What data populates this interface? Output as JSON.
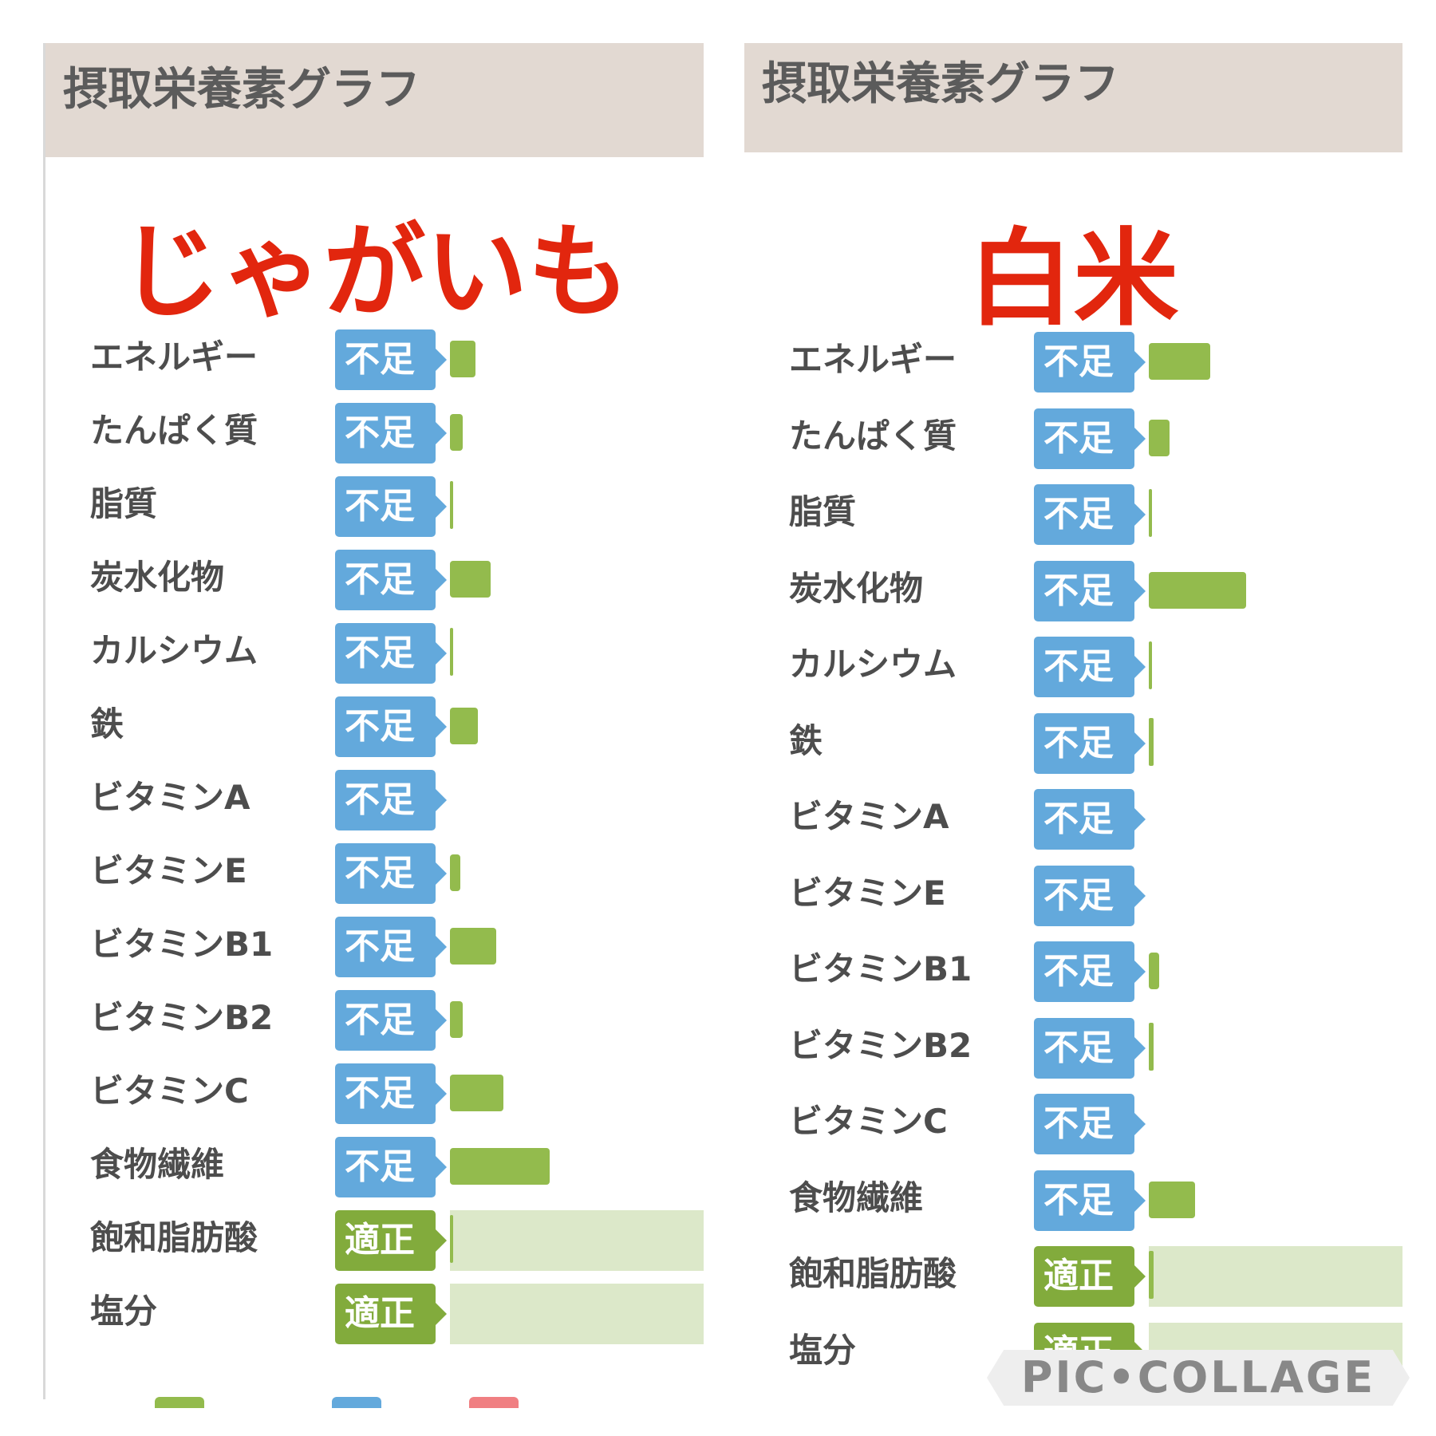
{
  "colors": {
    "header_bg": "#e2d9d2",
    "title_red": "#e2260e",
    "badge_lack": "#63a9dc",
    "badge_ok": "#82ab3c",
    "bar_green": "#93bb4d",
    "bar_track": "#dce8c9",
    "legend_green": "#93bb4d",
    "legend_blue": "#63a9dc",
    "legend_red": "#f07f82"
  },
  "chart_data": [
    {
      "type": "bar",
      "panel_title": "摂取栄養素グラフ",
      "title": "じゃがいも",
      "categories": [
        "エネルギー",
        "たんぱく質",
        "脂質",
        "炭水化物",
        "カルシウム",
        "鉄",
        "ビタミンA",
        "ビタミンE",
        "ビタミンB1",
        "ビタミンB2",
        "ビタミンC",
        "食物繊維",
        "飽和脂肪酸",
        "塩分"
      ],
      "status": [
        "不足",
        "不足",
        "不足",
        "不足",
        "不足",
        "不足",
        "不足",
        "不足",
        "不足",
        "不足",
        "不足",
        "不足",
        "適正",
        "適正"
      ],
      "values": [
        10,
        5,
        1,
        16,
        1,
        11,
        0,
        4,
        18,
        5,
        21,
        39,
        1,
        0
      ],
      "orientation": "horizontal",
      "unit_note": "approximate % of target, estimated from bar length"
    },
    {
      "type": "bar",
      "panel_title": "摂取栄養素グラフ",
      "title": "白米",
      "categories": [
        "エネルギー",
        "たんぱく質",
        "脂質",
        "炭水化物",
        "カルシウム",
        "鉄",
        "ビタミンA",
        "ビタミンE",
        "ビタミンB1",
        "ビタミンB2",
        "ビタミンC",
        "食物繊維",
        "飽和脂肪酸",
        "塩分"
      ],
      "status": [
        "不足",
        "不足",
        "不足",
        "不足",
        "不足",
        "不足",
        "不足",
        "不足",
        "不足",
        "不足",
        "不足",
        "不足",
        "適正",
        "適正"
      ],
      "values": [
        24,
        8,
        1,
        38,
        1,
        2,
        0,
        0,
        4,
        2,
        0,
        18,
        2,
        0
      ],
      "orientation": "horizontal",
      "unit_note": "approximate % of target, estimated from bar length"
    }
  ],
  "watermark": "PIC•COLLAGE"
}
